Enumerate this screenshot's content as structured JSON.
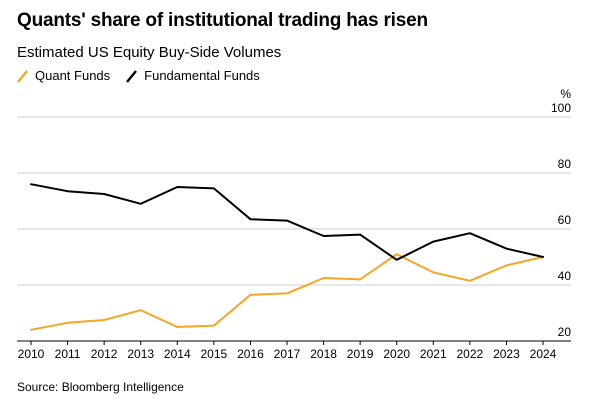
{
  "chart_data": {
    "type": "line",
    "title": "Quants' share of institutional trading has risen",
    "subtitle": "Estimated US Equity Buy-Side Volumes",
    "y_unit": "%",
    "ylim": [
      20,
      100
    ],
    "yticks": [
      20,
      40,
      60,
      80,
      100
    ],
    "x": [
      "2010",
      "2011",
      "2012",
      "2013",
      "2014",
      "2015",
      "2016",
      "2017",
      "2018",
      "2019",
      "2020",
      "2021",
      "2022",
      "2023",
      "2024"
    ],
    "grid": true,
    "legend_position": "top-left",
    "series": [
      {
        "name": "Quant Funds",
        "color": "#f5a623",
        "values": [
          24,
          26.5,
          27.5,
          31,
          25,
          25.5,
          36.5,
          37,
          42.5,
          42,
          51,
          44.5,
          41.5,
          47,
          50
        ]
      },
      {
        "name": "Fundamental Funds",
        "color": "#000000",
        "values": [
          76,
          73.5,
          72.5,
          69,
          75,
          74.5,
          63.5,
          63,
          57.5,
          58,
          49,
          55.5,
          58.5,
          53,
          50
        ]
      }
    ],
    "source": "Source: Bloomberg Intelligence"
  }
}
